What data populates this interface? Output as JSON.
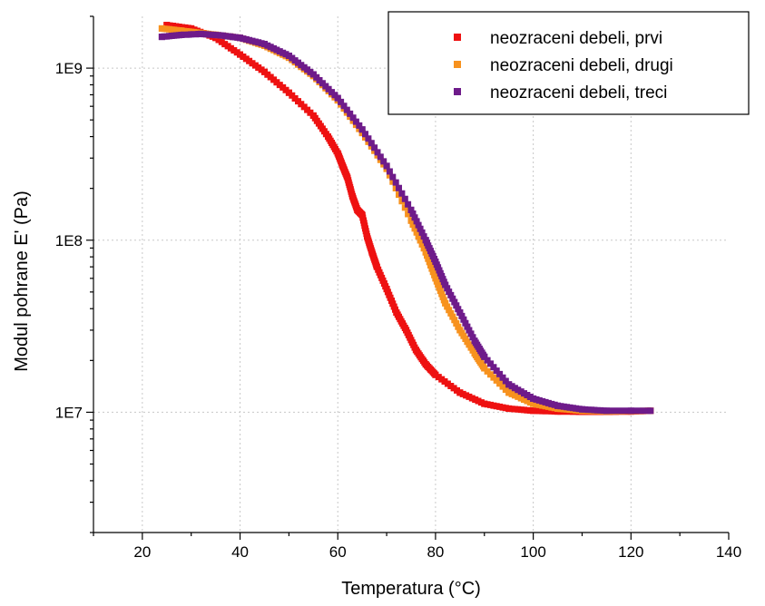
{
  "chart_data": {
    "type": "scatter",
    "title": "",
    "xlabel": "Temperatura (°C)",
    "ylabel": "Modul pohrane E' (Pa)",
    "xlim": [
      10,
      140
    ],
    "ylim": [
      2000000,
      2000000000
    ],
    "yscale": "log",
    "grid": true,
    "legend_position": "top-right",
    "x_ticks": [
      20,
      40,
      60,
      80,
      100,
      120,
      140
    ],
    "x_tick_labels": [
      "20",
      "40",
      "60",
      "80",
      "100",
      "120",
      "140"
    ],
    "y_ticks": [
      10000000,
      100000000,
      1000000000
    ],
    "y_tick_labels": [
      "1E7",
      "1E8",
      "1E9"
    ],
    "series": [
      {
        "name": "neozraceni debeli, prvi",
        "color": "#ee1111",
        "x": [
          25,
          30,
          35,
          40,
          45,
          50,
          55,
          58,
          60,
          61,
          62,
          63,
          64,
          65,
          66,
          67,
          68,
          70,
          72,
          74,
          76,
          78,
          80,
          85,
          90,
          95,
          100,
          105,
          110,
          115,
          120,
          124
        ],
        "y": [
          1780000000,
          1700000000,
          1500000000,
          1200000000,
          950000000,
          720000000,
          530000000,
          400000000,
          320000000,
          270000000,
          230000000,
          180000000,
          150000000,
          140000000,
          105000000,
          85000000,
          70000000,
          52000000,
          38000000,
          30000000,
          23000000,
          19000000,
          16500000,
          13000000,
          11200000,
          10500000,
          10200000,
          10100000,
          10050000,
          10050000,
          10100000,
          10200000
        ]
      },
      {
        "name": "neozraceni debeli, drugi",
        "color": "#f7921e",
        "x": [
          24,
          28,
          32,
          36,
          40,
          45,
          50,
          55,
          60,
          65,
          70,
          75,
          78,
          80,
          82,
          85,
          88,
          90,
          95,
          100,
          105,
          110,
          115,
          120,
          124
        ],
        "y": [
          1700000000,
          1650000000,
          1600000000,
          1550000000,
          1500000000,
          1350000000,
          1150000000,
          900000000,
          650000000,
          420000000,
          260000000,
          130000000,
          85000000,
          60000000,
          43000000,
          30000000,
          22000000,
          18000000,
          13000000,
          11200000,
          10500000,
          10200000,
          10100000,
          10150000,
          10200000
        ]
      },
      {
        "name": "neozraceni debeli, treci",
        "color": "#6e1b8a",
        "x": [
          24,
          28,
          32,
          36,
          40,
          45,
          50,
          55,
          60,
          65,
          70,
          75,
          78,
          80,
          82,
          85,
          88,
          90,
          95,
          100,
          105,
          110,
          115,
          120,
          124
        ],
        "y": [
          1520000000,
          1560000000,
          1580000000,
          1550000000,
          1500000000,
          1380000000,
          1180000000,
          920000000,
          670000000,
          440000000,
          270000000,
          150000000,
          100000000,
          75000000,
          55000000,
          38000000,
          26000000,
          21000000,
          14500000,
          12000000,
          10900000,
          10400000,
          10200000,
          10200000,
          10200000
        ]
      }
    ]
  }
}
